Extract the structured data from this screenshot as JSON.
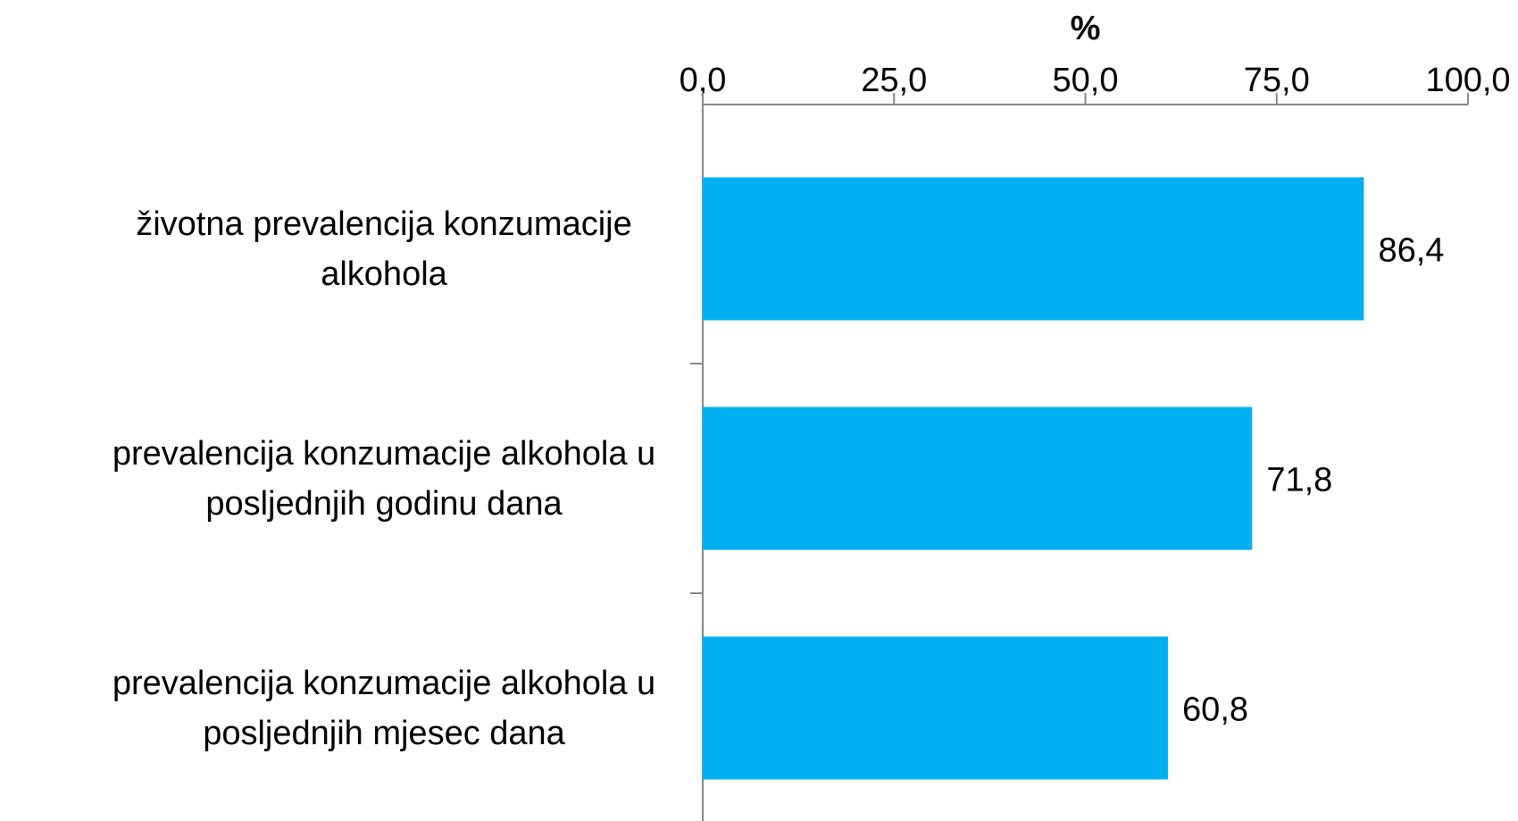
{
  "chart_data": {
    "type": "barh",
    "xlabel": "%",
    "categories": [
      "životna prevalencija konzumacije alkohola",
      "prevalencija konzumacije alkohola u posljednjih godinu dana",
      "prevalencija konzumacije alkohola u posljednjih mjesec dana"
    ],
    "values": [
      86.4,
      71.8,
      60.8
    ],
    "value_labels": [
      "86,4",
      "71,8",
      "60,8"
    ],
    "color": "#00b0f0",
    "xlim": [
      0,
      100
    ],
    "xticks": [
      {
        "value": 0,
        "label": "0,0"
      },
      {
        "value": 25,
        "label": "25,0"
      },
      {
        "value": 50,
        "label": "50,0"
      },
      {
        "value": 75,
        "label": "75,0"
      },
      {
        "value": 100,
        "label": "100,0"
      }
    ],
    "grid": false
  }
}
